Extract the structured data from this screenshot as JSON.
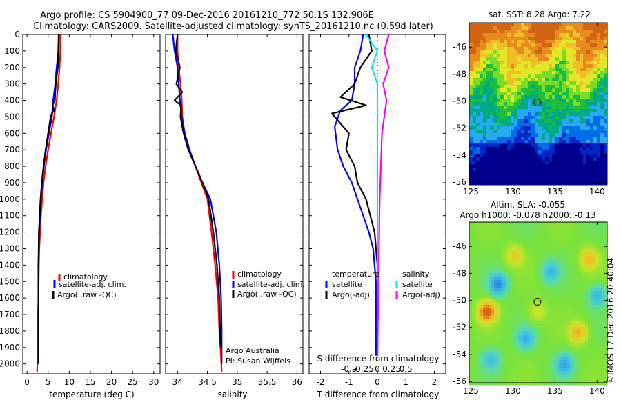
{
  "title_line1": "Argo profile: CS 5904900_77 09-Dec-2016 20161210_772 50.1S 132.906E",
  "title_line2": "Climatology: CARS2009. Satellite-adjusted climatology: synTS_20161210.nc (0.59d later)",
  "colors": {
    "climatology": "#ff0000",
    "satellite": "#0000ff",
    "argo": "#000000",
    "sat_salinity": "#00e5ee",
    "argo_salinity": "#ff00ff"
  },
  "chart_data": [
    {
      "type": "line",
      "xlabel": "temperature (deg C)",
      "xlim": [
        -1,
        31.5
      ],
      "xticks": [
        "0",
        "5",
        "10",
        "15",
        "20",
        "25",
        "30"
      ],
      "xtick_values": [
        0,
        5,
        10,
        15,
        20,
        25,
        30
      ],
      "ylim": [
        0,
        2060
      ],
      "ylabel_ticks": [
        "0",
        "100",
        "200",
        "300",
        "400",
        "500",
        "600",
        "700",
        "800",
        "900",
        "1000",
        "1100",
        "1200",
        "1300",
        "1400",
        "1500",
        "1600",
        "1700",
        "1800",
        "1900",
        "2000"
      ],
      "ytick_values": [
        0,
        100,
        200,
        300,
        400,
        500,
        600,
        700,
        800,
        900,
        1000,
        1100,
        1200,
        1300,
        1400,
        1500,
        1600,
        1700,
        1800,
        1900,
        2000
      ],
      "legend": {
        "labels": [
          "climatology",
          "satellite-adj. clim.",
          "Argo(..raw -QC)"
        ]
      },
      "series": [
        {
          "name": "climatology",
          "color": "#ff0000",
          "x": [
            8.0,
            7.9,
            7.7,
            7.4,
            7.0,
            6.4,
            5.7,
            5.0,
            4.4,
            3.9,
            3.6,
            3.3,
            3.1,
            2.9,
            2.8,
            2.7,
            2.6,
            2.5,
            2.4
          ],
          "y": [
            0,
            100,
            200,
            300,
            400,
            500,
            600,
            700,
            800,
            900,
            1000,
            1100,
            1200,
            1300,
            1400,
            1600,
            1700,
            1900,
            2050
          ]
        },
        {
          "name": "satellite-adj. clim.",
          "color": "#0000ff",
          "x": [
            7.6,
            7.5,
            7.0,
            6.7,
            6.2,
            5.9,
            5.2,
            4.5,
            4.0,
            3.6,
            3.3,
            3.1,
            2.9,
            2.8,
            2.7,
            2.7,
            2.7
          ],
          "y": [
            0,
            100,
            200,
            300,
            400,
            500,
            600,
            700,
            800,
            900,
            1000,
            1100,
            1200,
            1300,
            1400,
            1600,
            2000
          ]
        },
        {
          "name": "Argo(..raw -QC)",
          "color": "#000000",
          "x": [
            7.5,
            7.4,
            7.3,
            6.8,
            6.6,
            6.0,
            6.5,
            5.9,
            5.6,
            5.0,
            4.4,
            3.9,
            3.5,
            3.2,
            3.0,
            2.8,
            2.7,
            2.7,
            2.7
          ],
          "y": [
            0,
            100,
            200,
            300,
            400,
            430,
            460,
            480,
            500,
            600,
            700,
            800,
            900,
            1000,
            1100,
            1200,
            1400,
            1600,
            2000
          ]
        }
      ]
    },
    {
      "type": "line",
      "xlabel": "salinity",
      "xlim": [
        33.8,
        36.1
      ],
      "xticks": [
        "34",
        "34.5",
        "35",
        "35.5",
        "36"
      ],
      "xtick_values": [
        34,
        34.5,
        35,
        35.5,
        36
      ],
      "ylim": [
        0,
        2060
      ],
      "legend": {
        "labels": [
          "climatology",
          "satellite-adj. clim.",
          "Argo(..raw -QC)"
        ]
      },
      "annotations": [
        "Argo Australia",
        "PI: Susan Wijffels"
      ],
      "series": [
        {
          "name": "climatology",
          "color": "#ff0000",
          "x": [
            34.0,
            34.0,
            34.02,
            34.05,
            34.07,
            34.08,
            34.12,
            34.2,
            34.3,
            34.4,
            34.5,
            34.57,
            34.63,
            34.68,
            34.7,
            34.72,
            34.74
          ],
          "y": [
            0,
            100,
            200,
            300,
            400,
            500,
            600,
            700,
            800,
            900,
            1000,
            1200,
            1400,
            1600,
            1800,
            1900,
            2050
          ]
        },
        {
          "name": "satellite-adj. clim.",
          "color": "#0000ff",
          "x": [
            33.92,
            33.95,
            34.0,
            34.02,
            34.04,
            34.07,
            34.12,
            34.2,
            34.3,
            34.42,
            34.55,
            34.65,
            34.7,
            34.73,
            34.74,
            34.74
          ],
          "y": [
            0,
            100,
            200,
            300,
            400,
            500,
            600,
            700,
            800,
            900,
            1000,
            1200,
            1400,
            1600,
            1800,
            2000
          ]
        },
        {
          "name": "Argo(..raw -QC)",
          "color": "#000000",
          "x": [
            34.0,
            33.97,
            34.04,
            33.98,
            34.08,
            33.95,
            34.06,
            34.05,
            34.1,
            34.18,
            34.3,
            34.42,
            34.52,
            34.6,
            34.66,
            34.7,
            34.72
          ],
          "y": [
            0,
            100,
            200,
            300,
            350,
            400,
            430,
            500,
            600,
            700,
            800,
            900,
            1000,
            1200,
            1400,
            1600,
            1900
          ]
        }
      ]
    },
    {
      "type": "line",
      "xlabel": "T difference from climatology",
      "xlabel_top": "S difference from climatology",
      "xlim": [
        -2.4,
        2.4
      ],
      "xticks": [
        "-2",
        "-1",
        "0",
        "1",
        "2"
      ],
      "xtick_values": [
        -2,
        -1,
        0,
        1,
        2
      ],
      "xticks_top": [
        "-0.5",
        "-0.25",
        "0",
        "0.25",
        "0.5"
      ],
      "xtick_top_values": [
        -0.5,
        -0.25,
        0,
        0.25,
        0.5
      ],
      "ylim": [
        0,
        2060
      ],
      "legend": {
        "col1_title": "temperature",
        "col1": [
          "satellite",
          "Argo(-adj)"
        ],
        "col2_title": "salinity",
        "col2": [
          "satellite",
          "Argo(-adj)"
        ]
      },
      "series": [
        {
          "name": "satellite",
          "quantity": "temperature",
          "color": "#0000ff",
          "x": [
            -0.5,
            -0.6,
            -0.8,
            -0.8,
            -0.9,
            -1.3,
            -1.5,
            -1.4,
            -1.2,
            -0.9,
            -0.7,
            -0.5,
            -0.3,
            -0.15,
            -0.05,
            -0.05
          ],
          "y": [
            0,
            100,
            200,
            300,
            400,
            460,
            560,
            700,
            800,
            900,
            1000,
            1100,
            1200,
            1300,
            1500,
            1950
          ]
        },
        {
          "name": "Argo(-adj)",
          "quantity": "temperature",
          "color": "#000000",
          "x": [
            -0.3,
            -0.2,
            -0.6,
            -0.8,
            -1.3,
            -0.4,
            -1.6,
            -1.0,
            -1.1,
            -0.8,
            -0.7,
            -0.4,
            -0.1,
            0.0,
            0.0,
            0.0
          ],
          "y": [
            0,
            100,
            200,
            300,
            380,
            430,
            480,
            600,
            700,
            800,
            900,
            1000,
            1200,
            1400,
            1600,
            1950
          ]
        },
        {
          "name": "satellite",
          "quantity": "salinity",
          "color": "#00e5ee",
          "x": [
            -0.1,
            0.0,
            -0.05,
            0.0,
            0.0,
            0.0,
            0.0,
            0.0
          ],
          "y": [
            0,
            100,
            200,
            300,
            500,
            800,
            1200,
            1950
          ]
        },
        {
          "name": "Argo(-adj)",
          "quantity": "salinity",
          "color": "#ff00ff",
          "x": [
            0.1,
            0.06,
            0.1,
            0.05,
            0.08,
            0.04,
            0.03,
            0.02,
            0.0
          ],
          "y": [
            0,
            100,
            200,
            300,
            400,
            600,
            800,
            1000,
            1950
          ]
        }
      ]
    },
    {
      "type": "heatmap",
      "title": "sat. SST: 8.28  Argo: 7.22",
      "xticks": [
        "125",
        "130",
        "135",
        "140"
      ],
      "xtick_values": [
        125,
        130,
        135,
        140
      ],
      "yticks": [
        "-46",
        "-48",
        "-50",
        "-52",
        "-54",
        "-56"
      ],
      "ytick_values": [
        -46,
        -48,
        -50,
        -52,
        -54,
        -56
      ],
      "xlim": [
        124.8,
        141.2
      ],
      "ylim": [
        -56.1,
        -44.2
      ],
      "marker": {
        "lon": 132.906,
        "lat": -50.1
      }
    },
    {
      "type": "heatmap",
      "title_line1": "Altim. SLA: -0.055",
      "title_line2": "Argo h1000: -0.078  h2000: -0.13",
      "xticks": [
        "125",
        "130",
        "135",
        "140"
      ],
      "xtick_values": [
        125,
        130,
        135,
        140
      ],
      "yticks": [
        "-46",
        "-48",
        "-50",
        "-52",
        "-54",
        "-56"
      ],
      "ytick_values": [
        -46,
        -48,
        -50,
        -52,
        -54,
        -56
      ],
      "xlim": [
        124.8,
        141.2
      ],
      "ylim": [
        -56.1,
        -44.2
      ],
      "marker": {
        "lon": 132.906,
        "lat": -50.1
      },
      "credit": "©IMOS 17-Dec-2016 20:40:04"
    }
  ]
}
